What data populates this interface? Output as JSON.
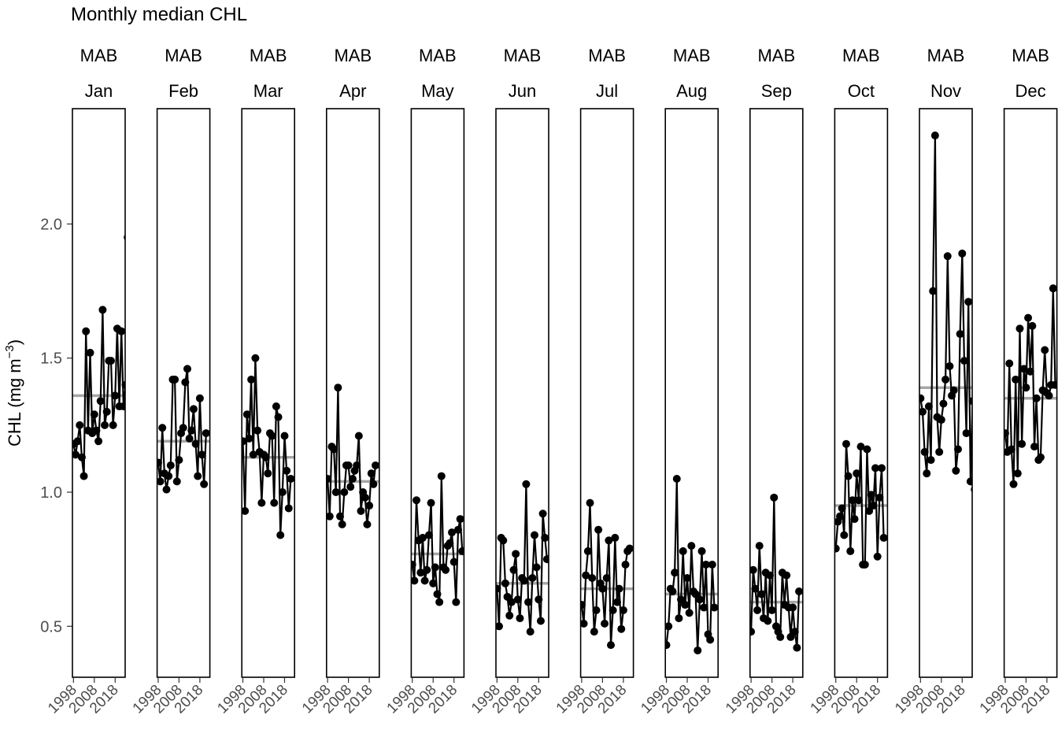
{
  "chart_data": {
    "type": "line",
    "title": "Monthly median CHL",
    "ylabel_main": "CHL (mg m",
    "ylabel_sup": "−3",
    "ylabel_close": ")",
    "ylim": [
      0.31,
      2.43
    ],
    "xlim": [
      1997.5,
      2022.8
    ],
    "yticks": [
      0.5,
      1.0,
      1.5,
      2.0
    ],
    "ytick_labels": [
      "0.5",
      "1.0",
      "1.5",
      "2.0"
    ],
    "xticks": [
      1998,
      2008,
      2018
    ],
    "xtick_labels": [
      "1998",
      "2008",
      "2018"
    ],
    "region": "MAB",
    "colors": {
      "points": "#000000",
      "line": "#000000",
      "mean_line": "#a6a6a6"
    },
    "panels": [
      {
        "region": "MAB",
        "month": "Jan",
        "mean": 1.36,
        "start_year": 1998,
        "values": [
          1.18,
          1.14,
          1.19,
          1.25,
          1.13,
          1.06,
          1.6,
          1.23,
          1.52,
          1.22,
          1.29,
          1.23,
          1.19,
          1.34,
          1.68,
          1.25,
          1.3,
          1.49,
          1.49,
          1.25,
          1.36,
          1.61,
          1.32,
          1.6,
          1.32,
          1.4,
          1.95
        ]
      },
      {
        "region": "MAB",
        "month": "Feb",
        "mean": 1.19,
        "start_year": 1998,
        "values": [
          1.11,
          1.04,
          1.24,
          1.07,
          1.01,
          1.06,
          1.1,
          1.42,
          1.42,
          1.04,
          1.12,
          1.22,
          1.24,
          1.41,
          1.46,
          1.2,
          1.23,
          1.31,
          1.18,
          1.06,
          1.35,
          1.14,
          1.03,
          1.22
        ]
      },
      {
        "region": "MAB",
        "month": "Mar",
        "mean": 1.13,
        "start_year": 1998,
        "values": [
          1.19,
          0.93,
          1.29,
          1.2,
          1.42,
          1.14,
          1.5,
          1.23,
          1.15,
          0.96,
          1.14,
          1.13,
          1.07,
          1.22,
          1.21,
          0.96,
          1.32,
          1.28,
          0.84,
          1.0,
          1.21,
          1.08,
          0.94,
          1.05
        ]
      },
      {
        "region": "MAB",
        "month": "Apr",
        "mean": 1.04,
        "start_year": 1998,
        "values": [
          1.05,
          0.91,
          1.17,
          1.16,
          1.0,
          1.39,
          0.91,
          0.88,
          1.0,
          1.1,
          1.1,
          1.02,
          1.05,
          1.08,
          1.1,
          1.21,
          0.93,
          1.0,
          0.98,
          0.88,
          0.95,
          1.07,
          1.03,
          1.1
        ]
      },
      {
        "region": "MAB",
        "month": "May",
        "mean": 0.77,
        "start_year": 1998,
        "values": [
          0.73,
          0.67,
          0.97,
          0.82,
          0.7,
          0.83,
          0.67,
          0.71,
          0.84,
          0.96,
          0.66,
          0.72,
          0.62,
          0.59,
          1.06,
          0.72,
          0.71,
          0.8,
          0.81,
          0.85,
          0.74,
          0.59,
          0.86,
          0.9,
          0.78
        ]
      },
      {
        "region": "MAB",
        "month": "Jun",
        "mean": 0.66,
        "start_year": 1998,
        "values": [
          0.64,
          0.5,
          0.83,
          0.82,
          0.66,
          0.61,
          0.54,
          0.59,
          0.71,
          0.77,
          0.6,
          0.53,
          0.68,
          0.67,
          1.03,
          0.59,
          0.48,
          0.68,
          0.84,
          0.72,
          0.6,
          0.52,
          0.92,
          0.83,
          0.75
        ]
      },
      {
        "region": "MAB",
        "month": "Jul",
        "mean": 0.64,
        "start_year": 1998,
        "values": [
          0.58,
          0.51,
          0.69,
          0.78,
          0.96,
          0.68,
          0.48,
          0.56,
          0.86,
          0.66,
          0.64,
          0.51,
          0.68,
          0.82,
          0.43,
          0.56,
          0.83,
          0.59,
          0.64,
          0.49,
          0.56,
          0.73,
          0.78,
          0.79
        ]
      },
      {
        "region": "MAB",
        "month": "Aug",
        "mean": 0.62,
        "start_year": 1998,
        "values": [
          0.43,
          0.5,
          0.64,
          0.63,
          0.7,
          1.05,
          0.53,
          0.6,
          0.78,
          0.58,
          0.68,
          0.55,
          0.8,
          0.63,
          0.62,
          0.41,
          0.6,
          0.78,
          0.57,
          0.73,
          0.47,
          0.45,
          0.73,
          0.57
        ]
      },
      {
        "region": "MAB",
        "month": "Sep",
        "mean": 0.59,
        "start_year": 1998,
        "values": [
          0.48,
          0.71,
          0.64,
          0.56,
          0.8,
          0.62,
          0.53,
          0.7,
          0.52,
          0.69,
          0.56,
          0.98,
          0.5,
          0.48,
          0.46,
          0.7,
          0.58,
          0.69,
          0.57,
          0.46,
          0.57,
          0.48,
          0.42,
          0.63
        ]
      },
      {
        "region": "MAB",
        "month": "Oct",
        "mean": 0.95,
        "start_year": 1998,
        "values": [
          0.79,
          0.89,
          0.91,
          0.94,
          0.84,
          1.18,
          1.06,
          0.78,
          0.97,
          0.9,
          1.07,
          0.97,
          1.17,
          0.73,
          0.73,
          1.16,
          0.93,
          0.99,
          0.95,
          1.09,
          0.76,
          0.98,
          1.09,
          0.83
        ]
      },
      {
        "region": "MAB",
        "month": "Nov",
        "mean": 1.39,
        "start_year": 1998,
        "values": [
          1.35,
          1.3,
          1.15,
          1.07,
          1.32,
          1.12,
          1.75,
          2.33,
          1.28,
          1.15,
          1.27,
          1.33,
          1.42,
          1.88,
          1.47,
          1.36,
          1.38,
          1.08,
          1.16,
          1.59,
          1.89,
          1.49,
          1.22,
          1.71,
          1.04,
          1.34,
          1.01
        ]
      },
      {
        "region": "MAB",
        "month": "Dec",
        "mean": 1.35,
        "start_year": 1998,
        "values": [
          1.22,
          1.15,
          1.48,
          1.16,
          1.03,
          1.42,
          1.07,
          1.61,
          1.18,
          1.46,
          1.39,
          1.65,
          1.45,
          1.62,
          1.17,
          1.35,
          1.12,
          1.13,
          1.38,
          1.53,
          1.37,
          1.36,
          1.4,
          1.76,
          1.4
        ]
      }
    ]
  }
}
